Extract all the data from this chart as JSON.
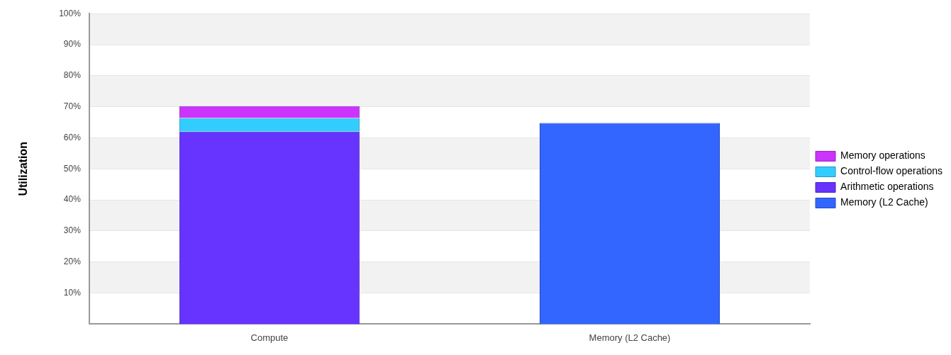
{
  "chart_data": {
    "type": "bar",
    "stacked": true,
    "ylabel": "Utilization",
    "categories": [
      "Compute",
      "Memory (L2 Cache)"
    ],
    "series": [
      {
        "name": "Memory (L2 Cache)",
        "color": "#3366ff",
        "values": [
          null,
          64.8
        ]
      },
      {
        "name": "Arithmetic operations",
        "color": "#6633ff",
        "values": [
          62,
          null
        ]
      },
      {
        "name": "Control-flow operations",
        "color": "#33ccff",
        "values": [
          4.4,
          null
        ]
      },
      {
        "name": "Memory operations",
        "color": "#cc33ff",
        "values": [
          3.8,
          null
        ]
      }
    ],
    "ylim": [
      0,
      100
    ],
    "yticks": [
      {
        "value": 10,
        "label": "10%"
      },
      {
        "value": 20,
        "label": "20%"
      },
      {
        "value": 30,
        "label": "30%"
      },
      {
        "value": 40,
        "label": "40%"
      },
      {
        "value": 50,
        "label": "50%"
      },
      {
        "value": 60,
        "label": "60%"
      },
      {
        "value": 70,
        "label": "70%"
      },
      {
        "value": 80,
        "label": "80%"
      },
      {
        "value": 90,
        "label": "90%"
      },
      {
        "value": 100,
        "label": "100%"
      }
    ],
    "grid": "y",
    "legend": "right"
  }
}
